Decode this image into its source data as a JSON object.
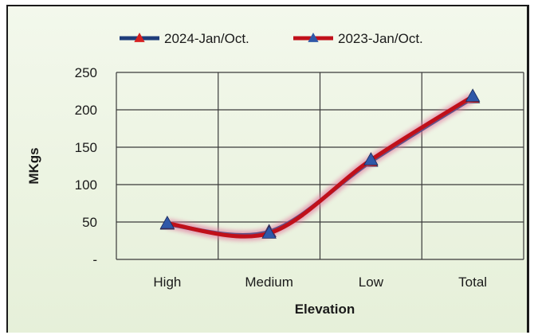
{
  "chart_data": {
    "type": "line",
    "title": "",
    "xlabel": "Elevation",
    "ylabel": "MKgs",
    "categories": [
      "High",
      "Medium",
      "Low",
      "Total"
    ],
    "ylim": [
      0,
      250
    ],
    "yticks": [
      0,
      50,
      100,
      150,
      200,
      250
    ],
    "ytick_labels": [
      "-",
      "50",
      "100",
      "150",
      "200",
      "250"
    ],
    "grid": true,
    "legend_position": "top",
    "series": [
      {
        "name": "2024-Jan/Oct.",
        "values": [
          47,
          37,
          131,
          216
        ],
        "color": "#1f3c7a",
        "marker_color": "#d62020"
      },
      {
        "name": "2023-Jan/Oct.",
        "values": [
          48,
          35,
          133,
          218
        ],
        "color": "#c0101a",
        "marker_color": "#2f58a8"
      }
    ]
  }
}
